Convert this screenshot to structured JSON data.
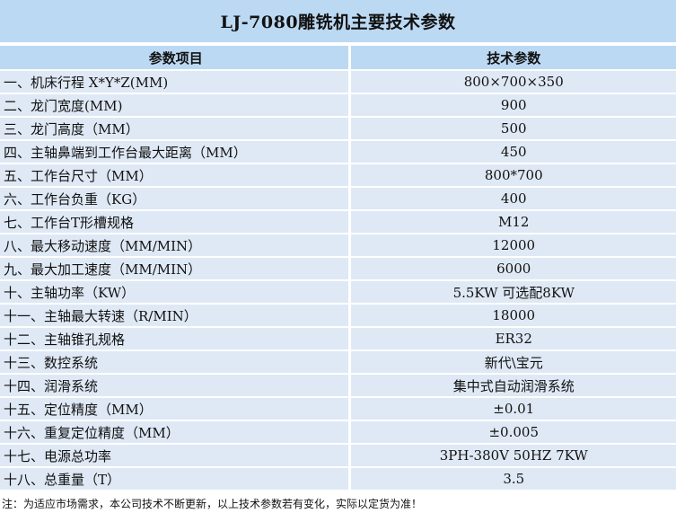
{
  "title": "LJ-7080雕铣机主要技术参数",
  "headers": {
    "param": "参数项目",
    "value": "技术参数"
  },
  "rows": [
    {
      "param": "一、机床行程 X*Y*Z(MM)",
      "value": "800×700×350"
    },
    {
      "param": "二、龙门宽度(MM)",
      "value": "900"
    },
    {
      "param": "三、龙门高度（MM）",
      "value": "500"
    },
    {
      "param": "四、主轴鼻端到工作台最大距离（MM）",
      "value": "450"
    },
    {
      "param": "五、工作台尺寸（MM）",
      "value": "800*700"
    },
    {
      "param": "六、工作台负重（KG）",
      "value": "400"
    },
    {
      "param": "七、工作台T形槽规格",
      "value": "M12"
    },
    {
      "param": "八、最大移动速度（MM/MIN）",
      "value": "12000"
    },
    {
      "param": "九、最大加工速度（MM/MIN）",
      "value": "6000"
    },
    {
      "param": "十、主轴功率（KW）",
      "value": "5.5KW 可选配8KW"
    },
    {
      "param": "十一、主轴最大转速（R/MIN）",
      "value": "18000"
    },
    {
      "param": "十二、主轴锥孔规格",
      "value": "ER32"
    },
    {
      "param": "十三、数控系统",
      "value": "新代\\宝元"
    },
    {
      "param": "十四、润滑系统",
      "value": "集中式自动润滑系统"
    },
    {
      "param": "十五、定位精度（MM）",
      "value": "±0.01"
    },
    {
      "param": "十六、重复定位精度（MM）",
      "value": "±0.005"
    },
    {
      "param": "十七、电源总功率",
      "value": "3PH-380V 50HZ 7KW"
    },
    {
      "param": "十八、总重量（T）",
      "value": "3.5"
    }
  ],
  "note": "注：为适应市场需求，本公司技术不断更新，以上技术参数若有变化，实际以定货为准！"
}
